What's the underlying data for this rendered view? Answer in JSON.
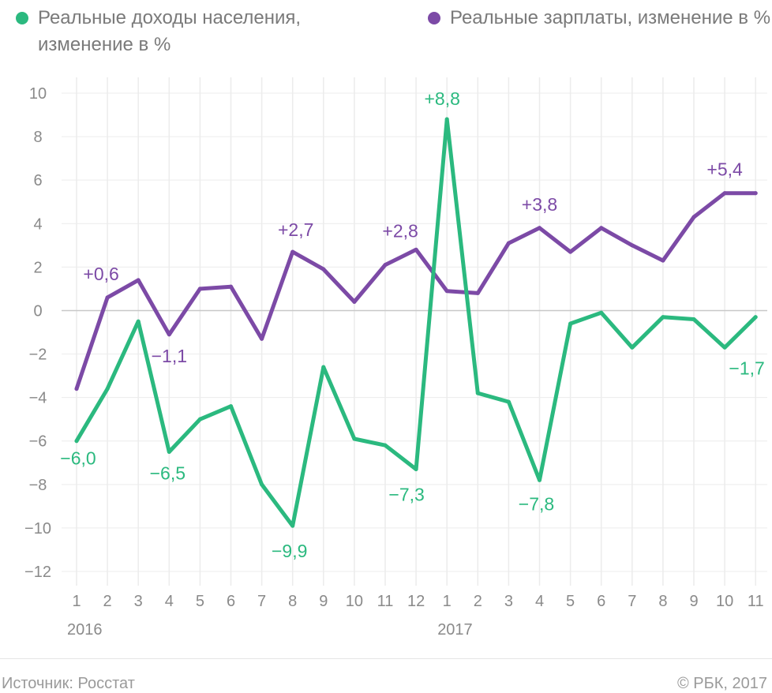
{
  "colors": {
    "incomes": "#2bb97f",
    "wages": "#7c4aa6",
    "grid": "#ececec",
    "zero_line": "#c8c8c8"
  },
  "legend": {
    "incomes_label": "Реальные доходы населения, изменение в %",
    "wages_label": "Реальные зарплаты, изменение в %"
  },
  "footer": {
    "source": "Источник: Росстат",
    "copyright": "© РБК, 2017"
  },
  "chart_data": {
    "type": "line",
    "title": "",
    "xlabel": "",
    "ylabel": "",
    "grid": true,
    "legend_position": "top",
    "ylim": [
      -12,
      10
    ],
    "y_ticks": [
      -12,
      -10,
      -8,
      -6,
      -4,
      -2,
      0,
      2,
      4,
      6,
      8,
      10
    ],
    "y_tick_labels": [
      "−12",
      "−10",
      "−8",
      "−6",
      "−4",
      "−2",
      "0",
      "2",
      "4",
      "6",
      "8",
      "10"
    ],
    "categories": [
      "1",
      "2",
      "3",
      "4",
      "5",
      "6",
      "7",
      "8",
      "9",
      "10",
      "11",
      "12",
      "1",
      "2",
      "3",
      "4",
      "5",
      "6",
      "7",
      "8",
      "9",
      "10",
      "11"
    ],
    "year_labels": [
      {
        "text": "2016",
        "index": 0
      },
      {
        "text": "2017",
        "index": 12
      }
    ],
    "series": [
      {
        "name": "Реальные доходы населения, изменение в %",
        "color": "#2bb97f",
        "values": [
          -6.0,
          -3.6,
          -0.5,
          -6.5,
          -5.0,
          -4.4,
          -8.0,
          -9.9,
          -2.6,
          -5.9,
          -6.2,
          -7.3,
          8.8,
          -3.8,
          -4.2,
          -7.8,
          -0.6,
          -0.1,
          -1.7,
          -0.3,
          -0.4,
          -1.7,
          -0.3
        ],
        "annotations": [
          {
            "index": 0,
            "text": "−6,0"
          },
          {
            "index": 3,
            "text": "−6,5"
          },
          {
            "index": 7,
            "text": "−9,9"
          },
          {
            "index": 11,
            "text": "−7,3"
          },
          {
            "index": 12,
            "text": "+8,8"
          },
          {
            "index": 15,
            "text": "−7,8"
          },
          {
            "index": 21,
            "text": "−1,7"
          }
        ]
      },
      {
        "name": "Реальные зарплаты, изменение в %",
        "color": "#7c4aa6",
        "values": [
          -3.6,
          0.6,
          1.4,
          -1.1,
          1.0,
          1.1,
          -1.3,
          2.7,
          1.9,
          0.4,
          2.1,
          2.8,
          0.9,
          0.8,
          3.1,
          3.8,
          2.7,
          3.8,
          3.0,
          2.3,
          4.3,
          5.4,
          5.4
        ],
        "annotations": [
          {
            "index": 1,
            "text": "+0,6"
          },
          {
            "index": 3,
            "text": "−1,1"
          },
          {
            "index": 7,
            "text": "+2,7"
          },
          {
            "index": 11,
            "text": "+2,8"
          },
          {
            "index": 15,
            "text": "+3,8"
          },
          {
            "index": 21,
            "text": "+5,4"
          }
        ]
      }
    ]
  }
}
